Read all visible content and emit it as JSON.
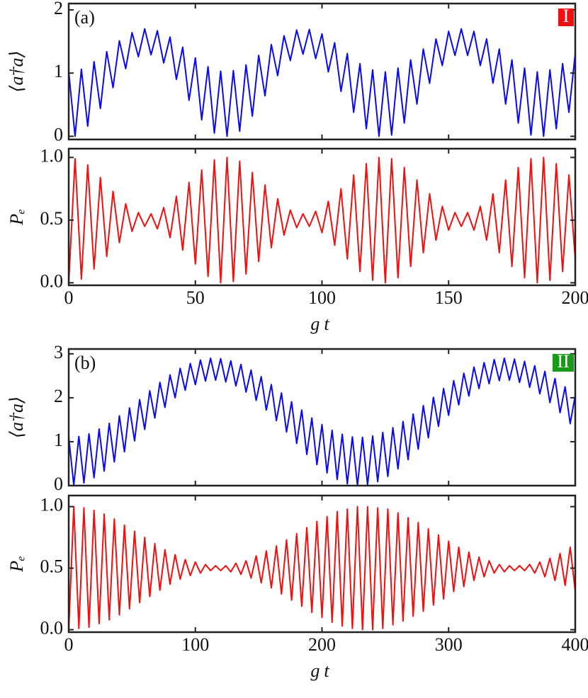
{
  "chart_data": [
    {
      "type": "line",
      "ylabel": "⟨a†a⟩",
      "annotation": "(a)",
      "badge": "I",
      "badge_color": "#ee1111",
      "color": "#0a0af0",
      "xlim": [
        0,
        200
      ],
      "ylim": [
        -0.05,
        2.1
      ],
      "yticks": [
        0,
        1,
        2
      ],
      "x": [
        0,
        2.5,
        5,
        7.5,
        10,
        12.5,
        15,
        17.5,
        20,
        22.5,
        25,
        27.5,
        30,
        32.5,
        35,
        37.5,
        40,
        42.5,
        45,
        47.5,
        50,
        52.5,
        55,
        57.5,
        60,
        62.5,
        65,
        67.5,
        70,
        72.5,
        75,
        77.5,
        80,
        82.5,
        85,
        87.5,
        90,
        92.5,
        95,
        97.5,
        100,
        102.5,
        105,
        107.5,
        110,
        112.5,
        115,
        117.5,
        120,
        122.5,
        125,
        127.5,
        130,
        132.5,
        135,
        137.5,
        140,
        142.5,
        145,
        147.5,
        150,
        152.5,
        155,
        157.5,
        160,
        162.5,
        165,
        167.5,
        170,
        172.5,
        175,
        177.5,
        180,
        182.5,
        185,
        187.5,
        190,
        192.5,
        195,
        197.5,
        200
      ],
      "values": [
        1.02,
        0,
        1.06,
        0.16,
        1.18,
        0.44,
        1.34,
        0.77,
        1.51,
        1.07,
        1.64,
        1.26,
        1.7,
        1.29,
        1.67,
        1.16,
        1.57,
        0.9,
        1.41,
        0.57,
        1.24,
        0.26,
        1.1,
        0.05,
        1.03,
        0,
        1.04,
        0.08,
        1.13,
        0.32,
        1.28,
        0.64,
        1.45,
        0.96,
        1.59,
        1.2,
        1.68,
        1.3,
        1.69,
        1.23,
        1.62,
        1.02,
        1.48,
        0.71,
        1.31,
        0.38,
        1.15,
        0.12,
        1.05,
        0,
        1.02,
        0.02,
        1.08,
        0.21,
        1.21,
        0.51,
        1.38,
        0.84,
        1.54,
        1.12,
        1.66,
        1.28,
        1.7,
        1.28,
        1.66,
        1.12,
        1.54,
        0.84,
        1.38,
        0.51,
        1.21,
        0.21,
        1.08,
        0.02,
        1.02,
        0,
        1.05,
        0.12,
        1.15,
        0.38,
        1.31
      ]
    },
    {
      "type": "line",
      "ylabel": "Pₑ",
      "xlabel": "gt",
      "color": "#f01010",
      "xlim": [
        0,
        200
      ],
      "ylim": [
        -0.02,
        1.07
      ],
      "yticks": [
        {
          "value": 0,
          "label": "0.0"
        },
        0.5,
        {
          "value": 1,
          "label": "1.0"
        }
      ],
      "xticks": [
        0,
        50,
        100,
        150,
        200
      ],
      "x": [
        0,
        2.5,
        5,
        7.5,
        10,
        12.5,
        15,
        17.5,
        20,
        22.5,
        25,
        27.5,
        30,
        32.5,
        35,
        37.5,
        40,
        42.5,
        45,
        47.5,
        50,
        52.5,
        55,
        57.5,
        60,
        62.5,
        65,
        67.5,
        70,
        72.5,
        75,
        77.5,
        80,
        82.5,
        85,
        87.5,
        90,
        92.5,
        95,
        97.5,
        100,
        102.5,
        105,
        107.5,
        110,
        112.5,
        115,
        117.5,
        120,
        122.5,
        125,
        127.5,
        130,
        132.5,
        135,
        137.5,
        140,
        142.5,
        145,
        147.5,
        150,
        152.5,
        155,
        157.5,
        160,
        162.5,
        165,
        167.5,
        170,
        172.5,
        175,
        177.5,
        180,
        182.5,
        185,
        187.5,
        190,
        192.5,
        195,
        197.5,
        200
      ],
      "values": [
        0,
        0.99,
        0.03,
        0.94,
        0.11,
        0.84,
        0.21,
        0.73,
        0.32,
        0.63,
        0.41,
        0.56,
        0.45,
        0.55,
        0.43,
        0.6,
        0.36,
        0.69,
        0.26,
        0.8,
        0.15,
        0.9,
        0.05,
        0.98,
        0,
        1,
        0.01,
        0.97,
        0.07,
        0.88,
        0.17,
        0.78,
        0.28,
        0.67,
        0.38,
        0.58,
        0.44,
        0.55,
        0.45,
        0.57,
        0.4,
        0.65,
        0.3,
        0.75,
        0.19,
        0.86,
        0.09,
        0.95,
        0.02,
        1,
        0,
        0.99,
        0.04,
        0.92,
        0.13,
        0.82,
        0.24,
        0.71,
        0.34,
        0.61,
        0.42,
        0.56,
        0.45,
        0.56,
        0.42,
        0.61,
        0.34,
        0.71,
        0.24,
        0.82,
        0.13,
        0.92,
        0.04,
        0.99,
        0,
        1,
        0.02,
        0.95,
        0.09,
        0.86,
        0.19
      ]
    },
    {
      "type": "line",
      "ylabel": "⟨a†a⟩",
      "annotation": "(b)",
      "badge": "II",
      "badge_color": "#1a9a1a",
      "color": "#0a0af0",
      "xlim": [
        0,
        400
      ],
      "ylim": [
        0,
        3.11
      ],
      "yticks": [
        0,
        1,
        2,
        3
      ],
      "x": [
        0,
        4,
        8,
        12,
        16,
        20,
        24,
        28,
        32,
        36,
        40,
        44,
        48,
        52,
        56,
        60,
        64,
        68,
        72,
        76,
        80,
        84,
        88,
        92,
        96,
        100,
        104,
        108,
        112,
        116,
        120,
        124,
        128,
        132,
        136,
        140,
        144,
        148,
        152,
        156,
        160,
        164,
        168,
        172,
        176,
        180,
        184,
        188,
        192,
        196,
        200,
        204,
        208,
        212,
        216,
        220,
        224,
        228,
        232,
        236,
        240,
        244,
        248,
        252,
        256,
        260,
        264,
        268,
        272,
        276,
        280,
        284,
        288,
        292,
        296,
        300,
        304,
        308,
        312,
        316,
        320,
        324,
        328,
        332,
        336,
        340,
        344,
        348,
        352,
        356,
        360,
        364,
        368,
        372,
        376,
        380,
        384,
        388,
        392,
        396,
        400
      ],
      "values": [
        1.1,
        0.01,
        1.12,
        0.06,
        1.18,
        0.18,
        1.29,
        0.33,
        1.42,
        0.54,
        1.59,
        0.77,
        1.77,
        1.02,
        1.96,
        1.28,
        2.16,
        1.54,
        2.35,
        1.78,
        2.52,
        2,
        2.67,
        2.17,
        2.78,
        2.3,
        2.86,
        2.38,
        2.9,
        2.4,
        2.89,
        2.36,
        2.84,
        2.27,
        2.76,
        2.13,
        2.63,
        1.94,
        2.48,
        1.72,
        2.3,
        1.48,
        2.11,
        1.22,
        1.91,
        0.96,
        1.72,
        0.71,
        1.54,
        0.48,
        1.39,
        0.29,
        1.26,
        0.14,
        1.17,
        0.04,
        1.11,
        0,
        1.1,
        0.02,
        1.13,
        0.09,
        1.21,
        0.21,
        1.32,
        0.38,
        1.46,
        0.59,
        1.63,
        0.83,
        1.82,
        1.09,
        2.01,
        1.35,
        2.21,
        1.6,
        2.39,
        1.84,
        2.56,
        2.04,
        2.7,
        2.21,
        2.8,
        2.32,
        2.87,
        2.39,
        2.9,
        2.4,
        2.88,
        2.35,
        2.83,
        2.24,
        2.73,
        2.09,
        2.6,
        1.89,
        2.44,
        1.66,
        2.25,
        1.41,
        2.06
      ]
    },
    {
      "type": "line",
      "ylabel": "Pₑ",
      "xlabel": "gt",
      "color": "#f01010",
      "xlim": [
        0,
        400
      ],
      "ylim": [
        -0.02,
        1.09
      ],
      "yticks": [
        {
          "value": 0,
          "label": "0.0"
        },
        0.5,
        {
          "value": 1,
          "label": "1.0"
        }
      ],
      "xticks": [
        0,
        100,
        200,
        300,
        400
      ],
      "x": [
        0,
        4,
        8,
        12,
        16,
        20,
        24,
        28,
        32,
        36,
        40,
        44,
        48,
        52,
        56,
        60,
        64,
        68,
        72,
        76,
        80,
        84,
        88,
        92,
        96,
        100,
        104,
        108,
        112,
        116,
        120,
        124,
        128,
        132,
        136,
        140,
        144,
        148,
        152,
        156,
        160,
        164,
        168,
        172,
        176,
        180,
        184,
        188,
        192,
        196,
        200,
        204,
        208,
        212,
        216,
        220,
        224,
        228,
        232,
        236,
        240,
        244,
        248,
        252,
        256,
        260,
        264,
        268,
        272,
        276,
        280,
        284,
        288,
        292,
        296,
        300,
        304,
        308,
        312,
        316,
        320,
        324,
        328,
        332,
        336,
        340,
        344,
        348,
        352,
        356,
        360,
        364,
        368,
        372,
        376,
        380,
        384,
        388,
        392,
        396,
        400
      ],
      "values": [
        0,
        1,
        0.01,
        0.99,
        0.02,
        0.97,
        0.05,
        0.94,
        0.08,
        0.9,
        0.12,
        0.85,
        0.17,
        0.8,
        0.22,
        0.75,
        0.27,
        0.7,
        0.32,
        0.65,
        0.37,
        0.61,
        0.41,
        0.57,
        0.44,
        0.55,
        0.46,
        0.53,
        0.48,
        0.52,
        0.48,
        0.52,
        0.47,
        0.54,
        0.45,
        0.56,
        0.42,
        0.6,
        0.38,
        0.64,
        0.34,
        0.68,
        0.29,
        0.73,
        0.24,
        0.78,
        0.19,
        0.83,
        0.14,
        0.88,
        0.1,
        0.92,
        0.06,
        0.96,
        0.03,
        0.98,
        0.01,
        1,
        0,
        1,
        0,
        0.99,
        0.01,
        0.98,
        0.04,
        0.95,
        0.07,
        0.91,
        0.11,
        0.87,
        0.15,
        0.82,
        0.2,
        0.77,
        0.25,
        0.72,
        0.31,
        0.67,
        0.35,
        0.63,
        0.4,
        0.59,
        0.43,
        0.56,
        0.46,
        0.53,
        0.47,
        0.52,
        0.48,
        0.52,
        0.48,
        0.53,
        0.46,
        0.55,
        0.43,
        0.58,
        0.4,
        0.62,
        0.36,
        0.67,
        0.31
      ]
    }
  ]
}
